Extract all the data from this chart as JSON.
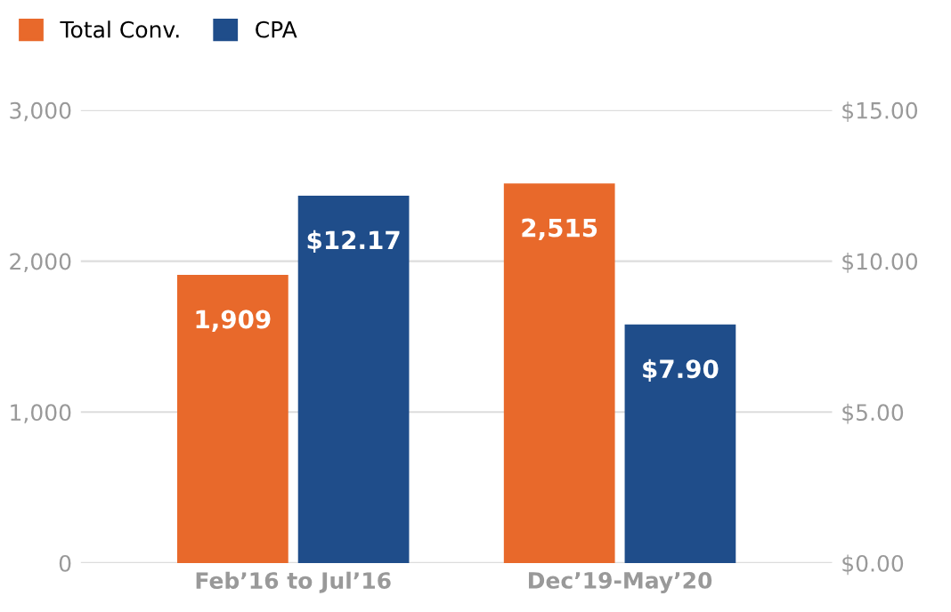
{
  "chart_data": {
    "type": "bar",
    "categories": [
      "Feb’16 to Jul’16",
      "Dec’19-May’20"
    ],
    "series": [
      {
        "name": "Total Conv.",
        "color": "#e8692b",
        "values": [
          1909,
          2515
        ],
        "value_labels": [
          "1,909",
          "2,515"
        ]
      },
      {
        "name": "CPA",
        "color": "#1f4d8a",
        "values": [
          12.17,
          7.9
        ],
        "axis": "y2",
        "value_labels": [
          "$12.17",
          "$7.90"
        ]
      }
    ],
    "ylim": [
      0,
      3000
    ],
    "yticks": [
      0,
      {
        "value": 1000,
        "label": "1,000"
      },
      {
        "value": 2000,
        "label": "2,000"
      },
      {
        "value": 3000,
        "label": "3,000"
      }
    ],
    "y2lim": [
      0,
      15
    ],
    "y2ticks": [
      {
        "value": 0,
        "label": "$0.00"
      },
      {
        "value": 5,
        "label": "$5.00"
      },
      {
        "value": 10,
        "label": "$10.00"
      },
      {
        "value": 15,
        "label": "$15.00"
      }
    ],
    "grid": "y",
    "legend": "top left"
  }
}
